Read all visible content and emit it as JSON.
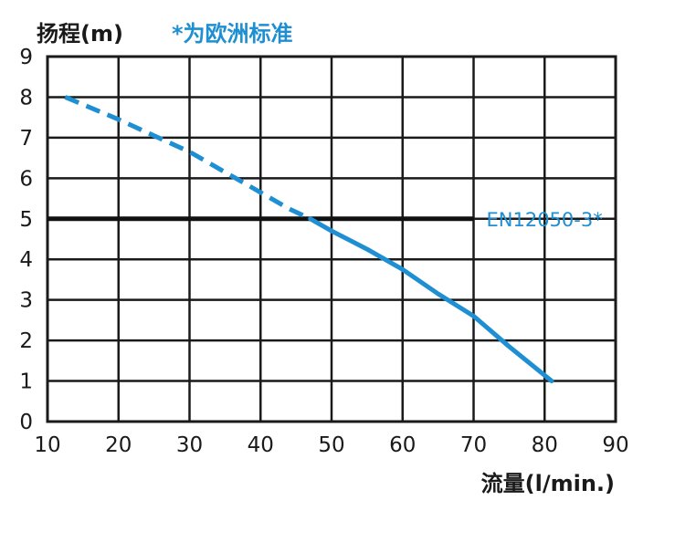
{
  "chart_data": {
    "type": "line",
    "ylabel": "扬程(m)",
    "note": "*为欧洲标准",
    "xlabel": "流量(l/min.)",
    "xlim": [
      10,
      90
    ],
    "ylim": [
      0,
      9
    ],
    "x_ticks": [
      "10",
      "20",
      "30",
      "40",
      "50",
      "60",
      "70",
      "80",
      "90"
    ],
    "y_ticks": [
      "0",
      "1",
      "2",
      "3",
      "4",
      "5",
      "6",
      "7",
      "8",
      "9"
    ],
    "grid": true,
    "series": [
      {
        "color": "#1e8fd2",
        "dashed_until_x": 47,
        "points": [
          [
            12.5,
            8.0
          ],
          [
            20,
            7.45
          ],
          [
            25,
            7.05
          ],
          [
            30,
            6.65
          ],
          [
            35,
            6.15
          ],
          [
            40,
            5.65
          ],
          [
            44,
            5.25
          ],
          [
            47,
            5.0
          ],
          [
            50,
            4.7
          ],
          [
            55,
            4.25
          ],
          [
            60,
            3.75
          ],
          [
            65,
            3.15
          ],
          [
            70,
            2.6
          ],
          [
            75,
            1.85
          ],
          [
            81,
            1.0
          ]
        ]
      }
    ],
    "reference_line": {
      "label": "EN12050-3*",
      "y": 5,
      "x_start": 10,
      "x_end": 70,
      "color": "#111111"
    }
  }
}
